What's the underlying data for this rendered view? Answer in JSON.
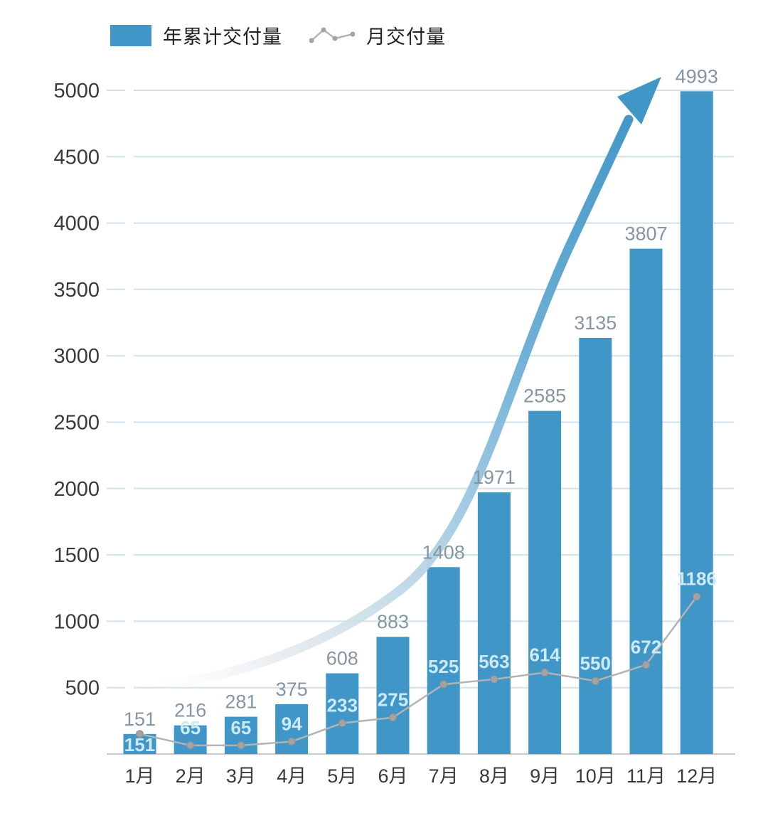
{
  "legend": {
    "items": [
      {
        "label": "年累计交付量",
        "type": "bar"
      },
      {
        "label": "月交付量",
        "type": "line"
      }
    ]
  },
  "chart_data": {
    "type": "bar",
    "categories": [
      "1月",
      "2月",
      "3月",
      "4月",
      "5月",
      "6月",
      "7月",
      "8月",
      "9月",
      "10月",
      "11月",
      "12月"
    ],
    "series": [
      {
        "name": "年累计交付量",
        "type": "bar",
        "values": [
          151,
          216,
          281,
          375,
          608,
          883,
          1408,
          1971,
          2585,
          3135,
          3807,
          4993
        ]
      },
      {
        "name": "月交付量",
        "type": "line",
        "values": [
          151,
          65,
          65,
          94,
          233,
          275,
          525,
          563,
          614,
          550,
          672,
          1186
        ]
      }
    ],
    "title": "",
    "xlabel": "",
    "ylabel": "",
    "ylim": [
      0,
      5000
    ],
    "yticks": [
      500,
      1000,
      1500,
      2000,
      2500,
      3000,
      3500,
      4000,
      4500,
      5000
    ],
    "grid": true,
    "legend_position": "top-left",
    "annotations": [
      {
        "type": "trend-arrow",
        "direction": "up-right",
        "meaning": "accelerating growth"
      }
    ]
  },
  "colors": {
    "bar": "#3f96c7",
    "line": "#b3b3b3",
    "dot": "#a3a3a3",
    "dot_stroke": "#919191",
    "grid": "#cfe2ea",
    "axis_line": "#c6ccd0",
    "axis_text": "#3a3a3a",
    "bar_value_label": "#8496a3",
    "line_value_label": "#cdeaf6",
    "arrow": "#3f96c7",
    "arrow_tail": "#e3e9ec",
    "background": "#ffffff"
  }
}
